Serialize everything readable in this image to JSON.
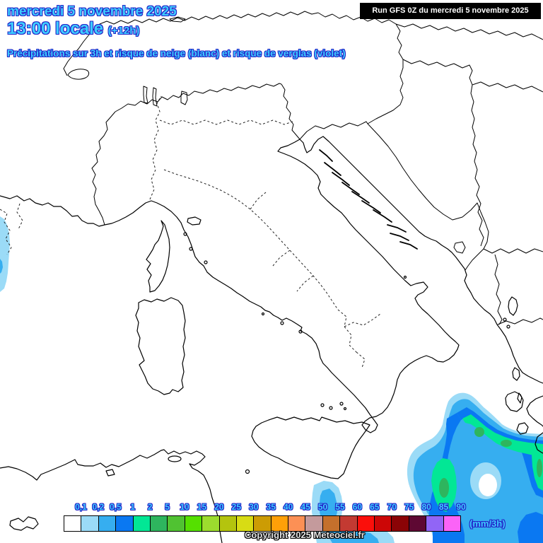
{
  "header": {
    "date_line": "mercredi 5 novembre 2025",
    "time_line": "13:00 locale",
    "offset_label": "(+12h)",
    "subtitle": "Précipitations sur 3h et risque de neige (blanc) et risque de verglas (violet)",
    "text_color": "#3DCCFF",
    "outline_color": "#2424C8"
  },
  "run_info": {
    "label": "Run GFS 0Z du mercredi 5 novembre 2025",
    "background": "#000000",
    "color": "#FFFFFF"
  },
  "legend": {
    "unit_label": "(mm/3h)",
    "tick_labels": [
      "0,1",
      "0,2",
      "0,5",
      "1",
      "2",
      "5",
      "10",
      "15",
      "20",
      "25",
      "30",
      "35",
      "40",
      "45",
      "50",
      "55",
      "60",
      "65",
      "70",
      "75",
      "80",
      "85",
      "90"
    ],
    "cell_colors": [
      "#FFFFFF",
      "#9BDBF7",
      "#36AEF0",
      "#0A78F2",
      "#02E795",
      "#2EB55E",
      "#50C232",
      "#55E000",
      "#9CDC2E",
      "#B4C40E",
      "#D8DC14",
      "#CC9C04",
      "#FFA008",
      "#FC9055",
      "#C49A9C",
      "#C4702C",
      "#C33A32",
      "#FB0F0B",
      "#CC0606",
      "#8B0306",
      "#5E0833",
      "#9165F6",
      "#FB63F7"
    ],
    "border_color": "#000000"
  },
  "map": {
    "background_color": "#FFFFFF",
    "coastline_color": "#000000",
    "region_border_style": "dashed",
    "precip_fills_visible": {
      "rain_0_1_to_0_2": "#9BDBF7",
      "rain_0_2_to_0_5": "#36AEF0",
      "rain_0_5_to_1": "#0A78F2",
      "rain_1_to_2": "#02E795",
      "rain_2_to_5": "#2EB55E"
    }
  },
  "copyright": {
    "label": "Copyright 2025 Meteociel.fr"
  }
}
